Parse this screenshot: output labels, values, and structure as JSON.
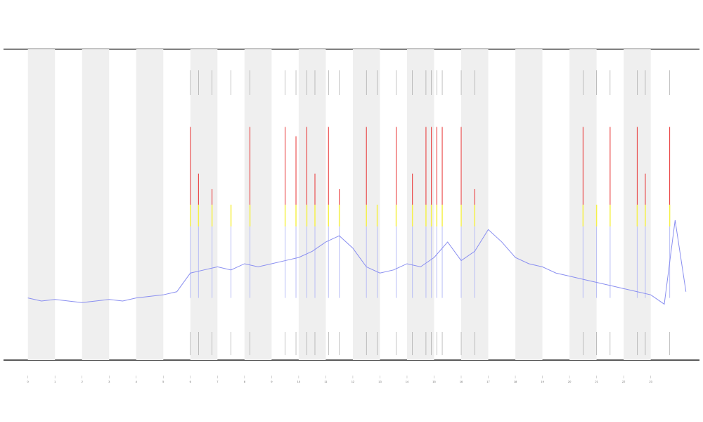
{
  "chart_data": {
    "type": "line",
    "xlim": [
      -0.9,
      24.8
    ],
    "ylim": [
      0,
      100
    ],
    "xticks": [
      0,
      1,
      2,
      3,
      4,
      5,
      6,
      7,
      8,
      9,
      10,
      11,
      12,
      13,
      14,
      15,
      16,
      17,
      18,
      19,
      20,
      21,
      22,
      23
    ],
    "shaded_ranges": [
      [
        0,
        1
      ],
      [
        2,
        3
      ],
      [
        4,
        5
      ],
      [
        6,
        7
      ],
      [
        8,
        9
      ],
      [
        10,
        11
      ],
      [
        12,
        13
      ],
      [
        14,
        15
      ],
      [
        16,
        17
      ],
      [
        18,
        19
      ],
      [
        20,
        21
      ],
      [
        22,
        23
      ]
    ],
    "shade_color": "#efefef",
    "series": [
      {
        "color": "#8a8ff0",
        "x": [
          0,
          0.5,
          1,
          1.5,
          2,
          2.5,
          3,
          3.5,
          4,
          4.5,
          5,
          5.5,
          6,
          6.5,
          7,
          7.5,
          8,
          8.5,
          9,
          9.5,
          10,
          10.5,
          11,
          11.5,
          12,
          12.5,
          13,
          13.5,
          14,
          14.5,
          15,
          15.5,
          16,
          16.5,
          17,
          17.5,
          18,
          18.5,
          19,
          19.5,
          20,
          20.5,
          21,
          21.5,
          22,
          22.5,
          23,
          23.5,
          23.9,
          24.3
        ],
        "values": [
          20,
          19,
          19.5,
          19,
          18.5,
          19,
          19.5,
          19,
          20,
          20.5,
          21,
          22,
          28,
          29,
          30,
          29,
          31,
          30,
          31,
          32,
          33,
          35,
          38,
          40,
          36,
          30,
          28,
          29,
          31,
          30,
          33,
          38,
          32,
          35,
          42,
          38,
          33,
          31,
          30,
          28,
          27,
          26,
          25,
          24,
          23,
          22,
          21,
          18,
          45,
          22
        ]
      }
    ],
    "spikes": {
      "x": [
        6,
        6.3,
        6.8,
        7.5,
        8.2,
        9.5,
        9.9,
        10.3,
        10.6,
        11.1,
        11.5,
        12.5,
        12.9,
        13.6,
        14.2,
        14.7,
        14.9,
        15.1,
        15.3,
        16,
        16.5,
        20.5,
        21,
        21.5,
        22.5,
        22.8,
        23.7
      ],
      "values": [
        75,
        60,
        55,
        50,
        75,
        75,
        72,
        75,
        60,
        75,
        55,
        75,
        50,
        75,
        60,
        75,
        75,
        75,
        75,
        75,
        55,
        75,
        50,
        75,
        75,
        60,
        75
      ]
    },
    "thresholds": [
      43,
      50
    ],
    "threshold_colors": [
      "#b8bdf5",
      "#f5f04a",
      "#e83030"
    ]
  }
}
